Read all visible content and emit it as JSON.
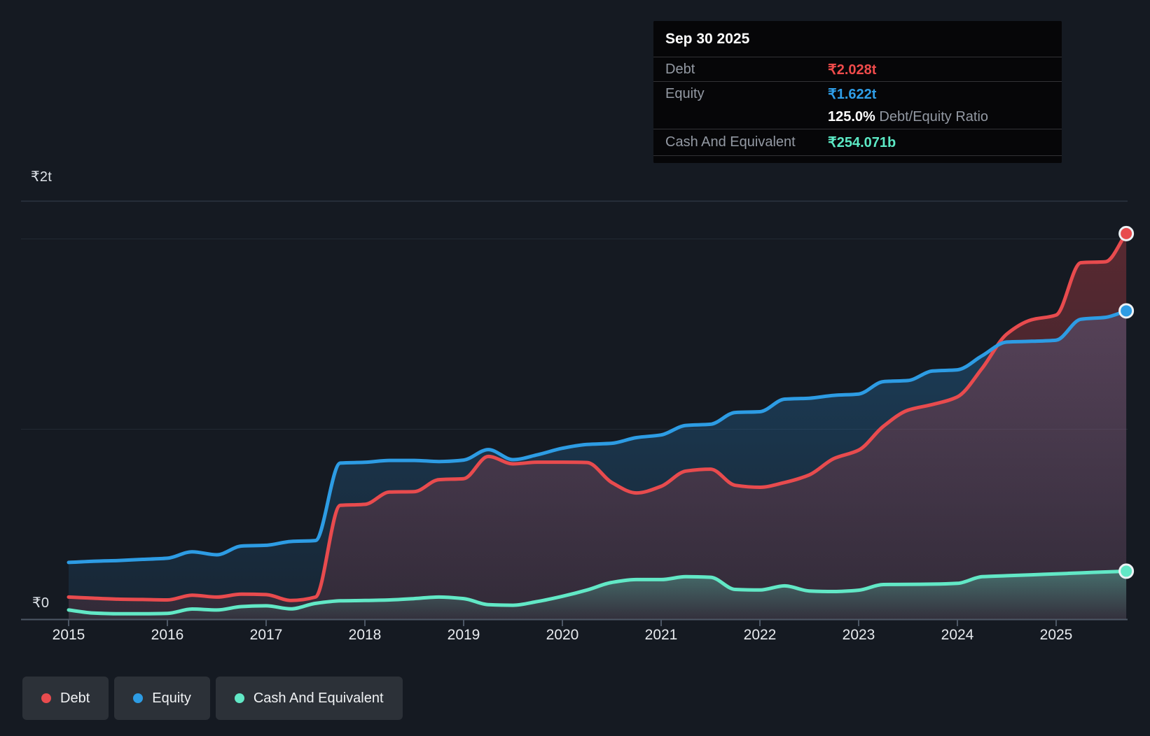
{
  "tooltip": {
    "date": "Sep 30 2025",
    "debt_label": "Debt",
    "debt_value": "₹2.028t",
    "equity_label": "Equity",
    "equity_value": "₹1.622t",
    "ratio_value": "125.0%",
    "ratio_label": "Debt/Equity Ratio",
    "cash_label": "Cash And Equivalent",
    "cash_value": "₹254.071b"
  },
  "y_axis": {
    "top_label": "₹2t",
    "zero_label": "₹0"
  },
  "x_axis": {
    "years": [
      "2015",
      "2016",
      "2017",
      "2018",
      "2019",
      "2020",
      "2021",
      "2022",
      "2023",
      "2024",
      "2025"
    ]
  },
  "legend": {
    "items": [
      {
        "id": "debt",
        "label": "Debt"
      },
      {
        "id": "equity",
        "label": "Equity"
      },
      {
        "id": "cash",
        "label": "Cash And Equivalent"
      }
    ]
  },
  "colors": {
    "debt": "#e84b4e",
    "equity": "#2d9ce4",
    "cash": "#62e8c6",
    "grid_faint": "#222933",
    "grid_top": "#2d3440",
    "axis": "#4d5765",
    "panel_bg": "#060608"
  },
  "chart_data": {
    "type": "area",
    "unit": "INR trillions",
    "ylim": [
      0,
      2.2
    ],
    "y_gridline_values": [
      0,
      1,
      2
    ],
    "x_ticks": [
      2015,
      2016,
      2017,
      2018,
      2019,
      2020,
      2021,
      2022,
      2023,
      2024,
      2025
    ],
    "last_point_date": "Sep 30 2025",
    "legend_position": "bottom-left",
    "x_years": [
      2015,
      2015.25,
      2015.5,
      2015.75,
      2016,
      2016.25,
      2016.5,
      2016.75,
      2017,
      2017.25,
      2017.5,
      2017.75,
      2018,
      2018.25,
      2018.5,
      2018.75,
      2019,
      2019.25,
      2019.5,
      2019.75,
      2020,
      2020.25,
      2020.5,
      2020.75,
      2021,
      2021.25,
      2021.5,
      2021.75,
      2022,
      2022.25,
      2022.5,
      2022.75,
      2023,
      2023.25,
      2023.5,
      2023.75,
      2024,
      2024.25,
      2024.5,
      2024.75,
      2025,
      2025.25,
      2025.5,
      2025.71
    ],
    "series": [
      {
        "id": "debt",
        "name": "Debt",
        "final_value_t": 2.028,
        "values": [
          0.118,
          0.112,
          0.107,
          0.105,
          0.103,
          0.128,
          0.118,
          0.133,
          0.131,
          0.1,
          0.118,
          0.6,
          0.605,
          0.67,
          0.672,
          0.735,
          0.74,
          0.857,
          0.818,
          0.827,
          0.827,
          0.825,
          0.72,
          0.665,
          0.7,
          0.78,
          0.79,
          0.705,
          0.695,
          0.72,
          0.76,
          0.846,
          0.89,
          1.015,
          1.1,
          1.13,
          1.17,
          1.32,
          1.5,
          1.575,
          1.6,
          1.875,
          1.88,
          2.028
        ]
      },
      {
        "id": "equity",
        "name": "Equity",
        "final_value_t": 1.622,
        "values": [
          0.3,
          0.306,
          0.31,
          0.316,
          0.322,
          0.356,
          0.34,
          0.386,
          0.39,
          0.41,
          0.415,
          0.822,
          0.826,
          0.836,
          0.836,
          0.83,
          0.838,
          0.893,
          0.84,
          0.866,
          0.9,
          0.92,
          0.926,
          0.956,
          0.97,
          1.02,
          1.026,
          1.088,
          1.092,
          1.158,
          1.163,
          1.178,
          1.185,
          1.25,
          1.256,
          1.306,
          1.312,
          1.386,
          1.458,
          1.462,
          1.468,
          1.578,
          1.588,
          1.622
        ]
      },
      {
        "id": "cash",
        "name": "Cash And Equivalent",
        "final_value_t": 0.254,
        "values": [
          0.05,
          0.034,
          0.03,
          0.03,
          0.032,
          0.055,
          0.05,
          0.068,
          0.072,
          0.056,
          0.085,
          0.098,
          0.1,
          0.103,
          0.11,
          0.118,
          0.11,
          0.078,
          0.075,
          0.095,
          0.122,
          0.155,
          0.195,
          0.21,
          0.21,
          0.225,
          0.222,
          0.158,
          0.155,
          0.177,
          0.15,
          0.147,
          0.154,
          0.184,
          0.185,
          0.186,
          0.19,
          0.225,
          0.23,
          0.235,
          0.24,
          0.245,
          0.25,
          0.254
        ]
      }
    ]
  }
}
